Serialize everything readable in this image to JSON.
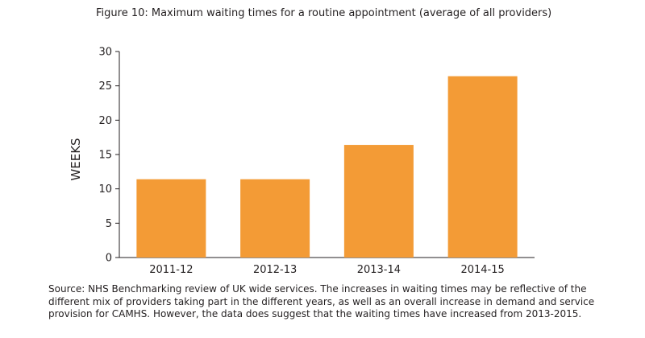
{
  "chart_data": {
    "type": "bar",
    "title": "Figure 10: Maximum waiting times for a routine appointment (average of all providers)",
    "ylabel": "WEEKS",
    "xlabel": "",
    "categories": [
      "2011-12",
      "2012-13",
      "2013-14",
      "2014-15"
    ],
    "values": [
      11.4,
      11.4,
      16.4,
      26.4
    ],
    "ylim": [
      0,
      30
    ],
    "yticks": [
      0,
      5,
      10,
      15,
      20,
      25,
      30
    ],
    "grid": false,
    "bar_color": "#f39b36",
    "axis_color": "#231f20"
  },
  "source_note": "Source: NHS Benchmarking review of UK wide services. The increases in waiting times may be reflective of the different mix of providers taking part in the different years, as well as an overall increase in demand and service provision for CAMHS. However, the data does suggest that the waiting times have increased from 2013-2015."
}
